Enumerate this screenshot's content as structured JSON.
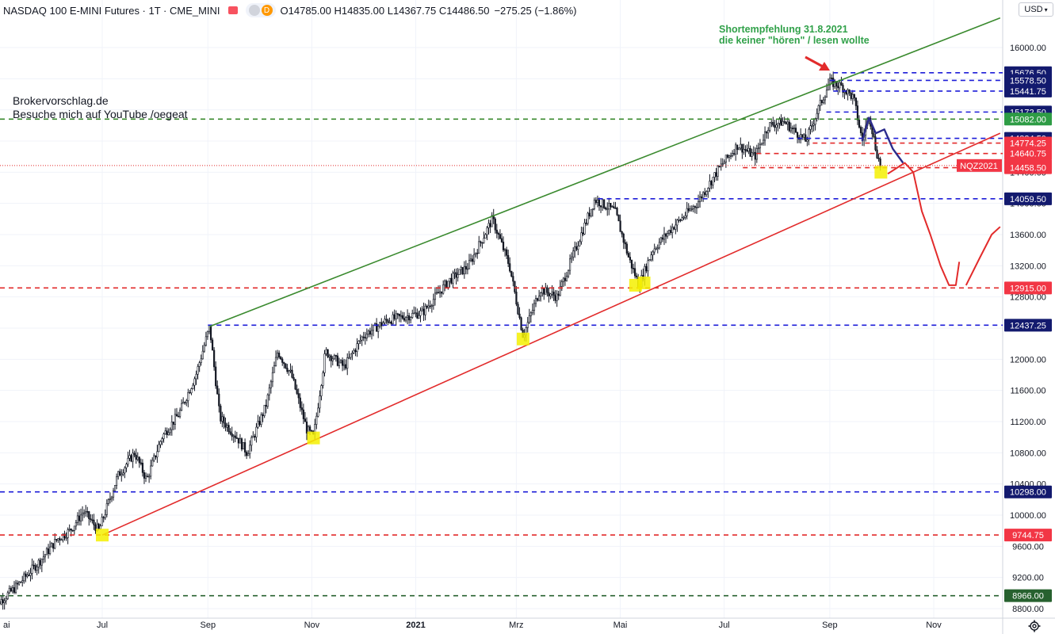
{
  "header": {
    "symbol": "NASDAQ 100 E-MINI Futures · 1T · CME_MINI",
    "ohlc_parts": [
      {
        "k": "O",
        "v": "14785.00"
      },
      {
        "k": "H",
        "v": "14835.00"
      },
      {
        "k": "L",
        "v": "14367.75"
      },
      {
        "k": "C",
        "v": "14486.50"
      }
    ],
    "change": "−275.25 (−1.86%)",
    "currency": "USD",
    "pill_letter": "D"
  },
  "watermark": {
    "line1": "Brokervorschlag.de",
    "line2": "Besuche mich auf YouTube /oegeat"
  },
  "annotation": {
    "line1": "Shortempfehlung 31.8.2021",
    "line2": "die keiner \"hören\" / lesen wollte"
  },
  "colors": {
    "up": "#131722",
    "axis_text": "#131722",
    "blue": "#1c1cd8",
    "red": "#e22b2b",
    "green": "#3a8a2e",
    "darkgreen": "#27612f",
    "navy": "#2b2b8c",
    "yellow": "#f5f000",
    "label_navy": "#131a6e",
    "label_red": "#f23645",
    "label_green": "#2e9c45"
  },
  "chart_data": {
    "type": "candlestick",
    "ylim": [
      8800,
      16300
    ],
    "y_ticks": [
      8800,
      9200,
      9600,
      10000,
      10400,
      10800,
      11200,
      11600,
      12000,
      12400,
      12800,
      13200,
      13600,
      14000,
      14400,
      14800,
      15200,
      15600,
      16000
    ],
    "y_tick_labels": [
      "8800.00",
      "9200.00",
      "9600.00",
      "10000.00",
      "10400.00",
      "10800.00",
      "11200.00",
      "11600.00",
      "12000.00",
      "12400.00",
      "12800.00",
      "13200.00",
      "13600.00",
      "14000.00",
      "14400.00",
      "14800.00",
      "15200.00",
      "15600.00",
      "16000.00"
    ],
    "x_labels": [
      {
        "label": "ai",
        "date": "2020-05-01"
      },
      {
        "label": "Jul",
        "date": "2020-07-01"
      },
      {
        "label": "Sep",
        "date": "2020-09-01"
      },
      {
        "label": "Nov",
        "date": "2020-11-01"
      },
      {
        "label": "2021",
        "date": "2021-01-01"
      },
      {
        "label": "Mrz",
        "date": "2021-03-01"
      },
      {
        "label": "Mai",
        "date": "2021-05-01"
      },
      {
        "label": "Jul",
        "date": "2021-07-01"
      },
      {
        "label": "Sep",
        "date": "2021-09-01"
      },
      {
        "label": "Nov",
        "date": "2021-11-01"
      }
    ],
    "price_path": [
      [
        "2020-04-27",
        8800
      ],
      [
        "2020-05-10",
        9050
      ],
      [
        "2020-05-25",
        9400
      ],
      [
        "2020-06-05",
        9700
      ],
      [
        "2020-06-12",
        9800
      ],
      [
        "2020-06-20",
        10050
      ],
      [
        "2020-06-29",
        9800
      ],
      [
        "2020-07-10",
        10500
      ],
      [
        "2020-07-20",
        10800
      ],
      [
        "2020-07-27",
        10450
      ],
      [
        "2020-08-05",
        11000
      ],
      [
        "2020-08-15",
        11300
      ],
      [
        "2020-08-25",
        11800
      ],
      [
        "2020-09-02",
        12420
      ],
      [
        "2020-09-08",
        11250
      ],
      [
        "2020-09-18",
        11000
      ],
      [
        "2020-09-24",
        10800
      ],
      [
        "2020-10-05",
        11400
      ],
      [
        "2020-10-12",
        12100
      ],
      [
        "2020-10-20",
        11800
      ],
      [
        "2020-10-29",
        11100
      ],
      [
        "2020-11-02",
        11000
      ],
      [
        "2020-11-09",
        12100
      ],
      [
        "2020-11-20",
        11900
      ],
      [
        "2020-12-01",
        12300
      ],
      [
        "2020-12-15",
        12500
      ],
      [
        "2021-01-05",
        12600
      ],
      [
        "2021-01-20",
        13000
      ],
      [
        "2021-02-01",
        13200
      ],
      [
        "2021-02-15",
        13800
      ],
      [
        "2021-02-25",
        13200
      ],
      [
        "2021-03-05",
        12300
      ],
      [
        "2021-03-15",
        12900
      ],
      [
        "2021-03-25",
        12800
      ],
      [
        "2021-04-08",
        13600
      ],
      [
        "2021-04-16",
        14050
      ],
      [
        "2021-04-28",
        13900
      ],
      [
        "2021-05-06",
        13300
      ],
      [
        "2021-05-12",
        12950
      ],
      [
        "2021-05-20",
        13400
      ],
      [
        "2021-06-01",
        13700
      ],
      [
        "2021-06-15",
        14000
      ],
      [
        "2021-06-28",
        14450
      ],
      [
        "2021-07-09",
        14750
      ],
      [
        "2021-07-19",
        14600
      ],
      [
        "2021-07-27",
        15000
      ],
      [
        "2021-08-05",
        15050
      ],
      [
        "2021-08-18",
        14800
      ],
      [
        "2021-08-25",
        15200
      ],
      [
        "2021-09-01",
        15560
      ],
      [
        "2021-09-08",
        15500
      ],
      [
        "2021-09-15",
        15350
      ],
      [
        "2021-09-20",
        14800
      ],
      [
        "2021-09-24",
        15150
      ],
      [
        "2021-09-28",
        14700
      ],
      [
        "2021-10-01",
        14450
      ]
    ],
    "horizontal_levels": [
      {
        "value": 15676.5,
        "label": "15676.50",
        "color": "blue",
        "label_bg": "label_navy"
      },
      {
        "value": 15578.5,
        "label": "15578.50",
        "color": "blue",
        "label_bg": "label_navy"
      },
      {
        "value": 15441.75,
        "label": "15441.75",
        "color": "blue",
        "label_bg": "label_navy"
      },
      {
        "value": 15172.5,
        "label": "15172.50",
        "color": "blue",
        "label_bg": "label_navy"
      },
      {
        "value": 15082.0,
        "label": "15082.00",
        "color": "green",
        "label_bg": "label_green"
      },
      {
        "value": 14834.5,
        "label": "14834.50",
        "color": "blue",
        "label_bg": "label_navy"
      },
      {
        "value": 14774.25,
        "label": "14774.25",
        "color": "red",
        "label_bg": "label_red"
      },
      {
        "value": 14640.75,
        "label": "14640.75",
        "color": "red",
        "label_bg": "label_red"
      },
      {
        "value": 14486.5,
        "label": "14486.50",
        "color": "red",
        "label_bg": "label_red"
      },
      {
        "value": 14458.5,
        "label": "14458.50",
        "color": "red",
        "label_bg": "label_red"
      },
      {
        "value": 14059.5,
        "label": "14059.50",
        "color": "blue",
        "label_bg": "label_navy"
      },
      {
        "value": 12915.0,
        "label": "12915.00",
        "color": "red",
        "label_bg": "label_red"
      },
      {
        "value": 12437.25,
        "label": "12437.25",
        "color": "blue",
        "label_bg": "label_navy"
      },
      {
        "value": 10298.0,
        "label": "10298.00",
        "color": "blue",
        "label_bg": "label_navy"
      },
      {
        "value": 9744.75,
        "label": "9744.75",
        "color": "red",
        "label_bg": "label_red"
      },
      {
        "value": 8966.0,
        "label": "8966.00",
        "color": "darkgreen",
        "label_bg": "darkgreen"
      }
    ],
    "current_tag": "NQZ2021",
    "trendlines": [
      {
        "name": "upper channel",
        "color": "green",
        "from": [
          "2020-09-02",
          12420
        ],
        "to": [
          "2021-12-10",
          16380
        ]
      },
      {
        "name": "lower channel",
        "color": "red",
        "from": [
          "2020-07-01",
          9744
        ],
        "to": [
          "2021-12-10",
          14900
        ]
      }
    ],
    "touch_markers": [
      [
        "2020-07-01",
        9744
      ],
      [
        "2020-11-02",
        10990
      ],
      [
        "2021-03-05",
        12260
      ],
      [
        "2021-05-10",
        12950
      ],
      [
        "2021-05-15",
        12980
      ],
      [
        "2021-10-01",
        14400
      ]
    ],
    "forecast_blue": [
      [
        "2021-09-20",
        14800
      ],
      [
        "2021-09-24",
        15100
      ],
      [
        "2021-09-28",
        14900
      ],
      [
        "2021-10-03",
        14950
      ],
      [
        "2021-10-08",
        14700
      ],
      [
        "2021-10-14",
        14520
      ]
    ],
    "forecast_red": [
      [
        "2021-10-05",
        14380
      ],
      [
        "2021-10-15",
        14520
      ],
      [
        "2021-10-20",
        14400
      ],
      [
        "2021-10-25",
        13900
      ],
      [
        "2021-10-30",
        13600
      ],
      [
        "2021-11-05",
        13200
      ],
      [
        "2021-11-10",
        12950
      ],
      [
        "2021-11-14",
        12950
      ],
      [
        "2021-11-16",
        13250
      ]
    ],
    "forecast_red2": [
      [
        "2021-11-20",
        12950
      ],
      [
        "2021-11-28",
        13300
      ],
      [
        "2021-12-05",
        13600
      ],
      [
        "2021-12-10",
        13700
      ]
    ]
  }
}
